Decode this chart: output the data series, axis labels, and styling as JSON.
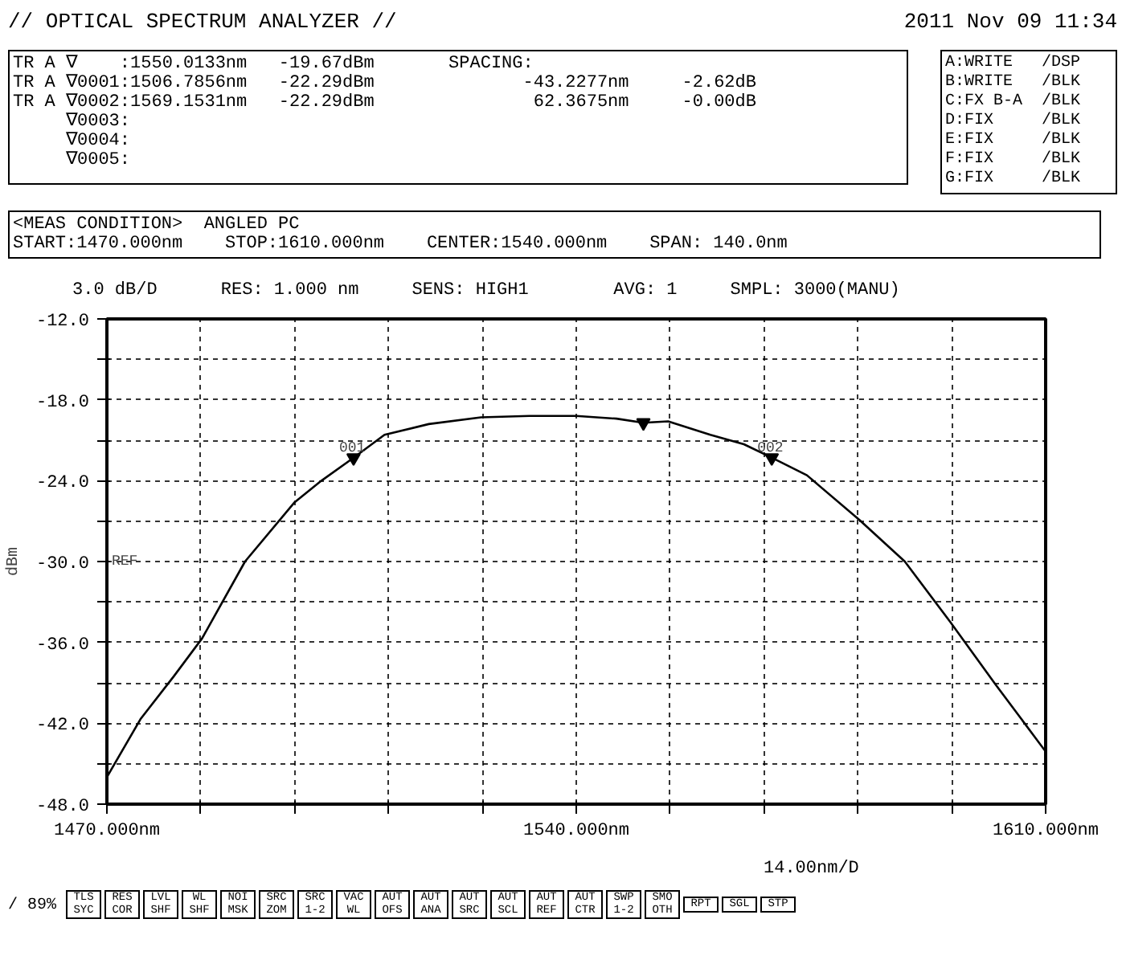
{
  "chart_data": {
    "type": "line",
    "title": "// OPTICAL SPECTRUM ANALYZER //",
    "subtitle": "2011 Nov 09 11:34",
    "ylabel": "dBm",
    "xlim": [
      1470,
      1610
    ],
    "ylim": [
      -48,
      -12
    ],
    "xticks": [
      {
        "value": 1470,
        "label": "1470.000nm"
      },
      {
        "value": 1484,
        "label": null
      },
      {
        "value": 1498,
        "label": null
      },
      {
        "value": 1512,
        "label": null
      },
      {
        "value": 1526,
        "label": null
      },
      {
        "value": 1540,
        "label": "1540.000nm"
      },
      {
        "value": 1554,
        "label": null
      },
      {
        "value": 1568,
        "label": null
      },
      {
        "value": 1582,
        "label": null
      },
      {
        "value": 1596,
        "label": null
      },
      {
        "value": 1610,
        "label": "1610.000nm"
      }
    ],
    "yticks": [
      {
        "value": -12,
        "label": "-12.0"
      },
      {
        "value": -15,
        "label": null
      },
      {
        "value": -18,
        "label": "-18.0"
      },
      {
        "value": -21,
        "label": null
      },
      {
        "value": -24,
        "label": "-24.0"
      },
      {
        "value": -27,
        "label": null
      },
      {
        "value": -30,
        "label": "-30.0"
      },
      {
        "value": -33,
        "label": null
      },
      {
        "value": -36,
        "label": "-36.0"
      },
      {
        "value": -39,
        "label": null
      },
      {
        "value": -42,
        "label": "-42.0"
      },
      {
        "value": -45,
        "label": null
      },
      {
        "value": -48,
        "label": "-48.0"
      }
    ],
    "grid": true,
    "series": [
      {
        "color": "#000000",
        "x": [
          1470,
          1475,
          1480,
          1484.2,
          1490.6,
          1498,
          1502,
          1506.8,
          1511.4,
          1518,
          1525.8,
          1533,
          1540,
          1546,
          1550,
          1553.7,
          1560,
          1565,
          1569.2,
          1574.4,
          1582.2,
          1589,
          1595.8,
          1602.5,
          1610
        ],
        "values": [
          -46.0,
          -41.7,
          -38.5,
          -35.7,
          -30.0,
          -25.6,
          -24.0,
          -22.3,
          -20.6,
          -19.8,
          -19.3,
          -19.2,
          -19.2,
          -19.4,
          -19.7,
          -19.6,
          -20.6,
          -21.3,
          -22.3,
          -23.6,
          -26.9,
          -30.0,
          -34.5,
          -39.1,
          -44.1
        ]
      },
      {
        "type": "scatter",
        "color": "#000000",
        "marker": "triangle",
        "x": [
          1506.7856,
          1550.0133,
          1569.1531
        ],
        "values": [
          -22.3,
          -19.7,
          -22.3
        ]
      }
    ],
    "annotations": [
      "TR A ∇    :1550.0133nm   -19.67dBm       SPACING:",
      "TR A ∇0001:1506.7856nm   -22.29dBm              -43.2277nm     -2.62dB",
      "TR A ∇0002:1569.1531nm   -22.29dBm               62.3675nm     -0.00dB",
      "     ∇0003:",
      "     ∇0004:",
      "     ∇0005:",
      "A:WRITE   /DSP",
      "B:WRITE   /BLK",
      "C:FX B-A  /BLK",
      "D:FIX     /BLK",
      "E:FIX     /BLK",
      "F:FIX     /BLK",
      "G:FIX     /BLK",
      "<MEAS CONDITION>  ANGLED PC",
      "START:1470.000nm    STOP:1610.000nm    CENTER:1540.000nm    SPAN: 140.0nm",
      "3.0 dB/D      RES: 1.000 nm     SENS: HIGH1        AVG: 1     SMPL: 3000(MANU)",
      {
        "text": "001",
        "x": 1506.7856,
        "y": -22.29
      },
      {
        "text": "002",
        "x": 1569.1531,
        "y": -22.29
      },
      "REF",
      "14.00nm/D",
      "/ 89%",
      "TLS SYC",
      "RES COR",
      "LVL SHF",
      "WL SHF",
      "NOI MSK",
      "SRC ZOM",
      "SRC 1-2",
      "VAC WL",
      "AUT OFS",
      "AUT ANA",
      "AUT SRC",
      "AUT SCL",
      "AUT REF",
      "AUT CTR",
      "SWP 1-2",
      "SMO OTH",
      "RPT",
      "SGL",
      "STP"
    ]
  }
}
